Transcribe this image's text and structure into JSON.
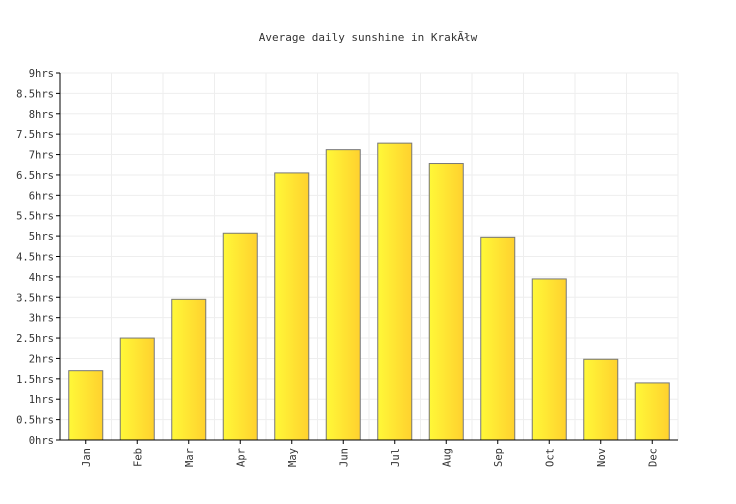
{
  "chart_data": {
    "type": "bar",
    "title": "Average daily sunshine in KrakÃłw",
    "categories": [
      "Jan",
      "Feb",
      "Mar",
      "Apr",
      "May",
      "Jun",
      "Jul",
      "Aug",
      "Sep",
      "Oct",
      "Nov",
      "Dec"
    ],
    "values": [
      1.7,
      2.5,
      3.45,
      5.07,
      6.55,
      7.12,
      7.28,
      6.78,
      4.97,
      3.95,
      1.98,
      1.4
    ],
    "unit_suffix": "hrs",
    "y_ticks": [
      "0hrs",
      "0.5hrs",
      "1hrs",
      "1.5hrs",
      "2hrs",
      "2.5hrs",
      "3hrs",
      "3.5hrs",
      "4hrs",
      "4.5hrs",
      "5hrs",
      "5.5hrs",
      "6hrs",
      "6.5hrs",
      "7hrs",
      "7.5hrs",
      "8hrs",
      "8.5hrs",
      "9hrs"
    ],
    "ylim": [
      0,
      9
    ],
    "xlabel": "",
    "ylabel": "",
    "grid": true,
    "legend": "none",
    "colors": {
      "bar_gradient_start": "#fff838",
      "bar_gradient_end": "#ffd12e",
      "bar_stroke": "#777777",
      "grid": "#eeeeee",
      "axis": "#000000"
    }
  }
}
